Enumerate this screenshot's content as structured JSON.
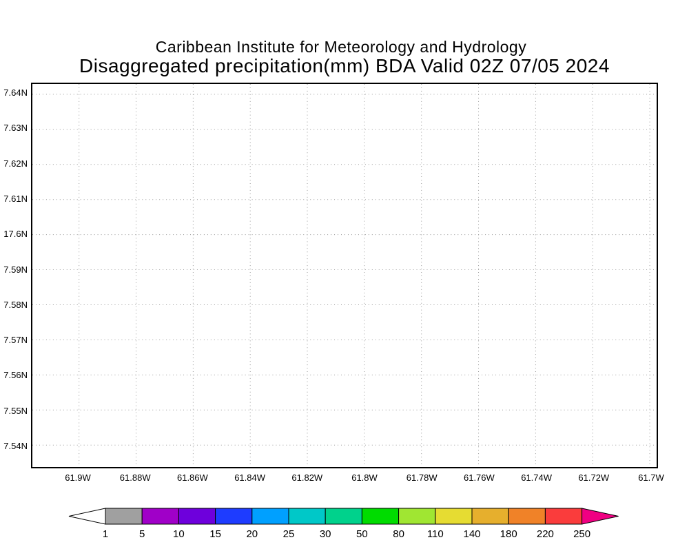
{
  "header": {
    "line1": "Caribbean Institute for Meteorology and Hydrology",
    "line2": "Disaggregated precipitation(mm) BDA Valid 02Z 07/05 2024"
  },
  "chart_data": {
    "type": "heatmap",
    "title": "Disaggregated precipitation(mm) BDA Valid 02Z 07/05 2024",
    "subtitle": "Caribbean Institute for Meteorology and Hydrology",
    "x_ticks": [
      "61.9W",
      "61.88W",
      "61.86W",
      "61.84W",
      "61.82W",
      "61.8W",
      "61.78W",
      "61.76W",
      "61.74W",
      "61.72W",
      "61.7W"
    ],
    "y_ticks": [
      "7.64N",
      "7.63N",
      "7.62N",
      "7.61N",
      "17.6N",
      "7.59N",
      "7.58N",
      "7.57N",
      "7.56N",
      "7.55N",
      "7.54N"
    ],
    "values": [],
    "grid": true,
    "legend_position": "bottom",
    "colorbar": {
      "levels": [
        "1",
        "5",
        "10",
        "15",
        "20",
        "25",
        "30",
        "50",
        "80",
        "110",
        "140",
        "180",
        "220",
        "250"
      ],
      "colors": [
        "#a0a0a0",
        "#a000c8",
        "#6e00dc",
        "#1e3cff",
        "#00a0ff",
        "#00c8c8",
        "#00d28c",
        "#00dc00",
        "#a0e632",
        "#e6dc32",
        "#e6af2d",
        "#f08228",
        "#fa3c3c"
      ],
      "under_color": "#ffffff",
      "over_color": "#f00082",
      "outline_color": "#000000"
    }
  }
}
